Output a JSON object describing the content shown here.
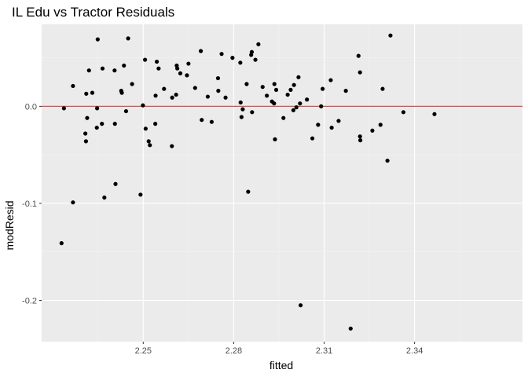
{
  "chart_data": {
    "type": "scatter",
    "title": "IL Edu vs Tractor Residuals",
    "xlabel": "fitted",
    "ylabel": "modResid",
    "xlim": [
      2.2163,
      2.3758
    ],
    "ylim": [
      -0.2425,
      0.0845
    ],
    "x_ticks": [
      2.25,
      2.28,
      2.31,
      2.34
    ],
    "x_tick_labels": [
      "2.25",
      "2.28",
      "2.31",
      "2.34"
    ],
    "y_ticks": [
      -0.2,
      -0.1,
      0.0
    ],
    "y_tick_labels": [
      "-0.2",
      "-0.1",
      "0.0"
    ],
    "grid": true,
    "panel_background": "#ebebeb",
    "point_color": "#000000",
    "reference_line": {
      "y": 0,
      "color": "#e8494f"
    },
    "points": [
      [
        2.2229,
        -0.141
      ],
      [
        2.2237,
        -0.002
      ],
      [
        2.2267,
        0.021
      ],
      [
        2.2267,
        -0.099
      ],
      [
        2.2308,
        -0.028
      ],
      [
        2.231,
        -0.036
      ],
      [
        2.2311,
        0.013
      ],
      [
        2.2314,
        -0.012
      ],
      [
        2.232,
        0.037
      ],
      [
        2.2331,
        0.014
      ],
      [
        2.2346,
        -0.022
      ],
      [
        2.2347,
        -0.002
      ],
      [
        2.2349,
        0.069
      ],
      [
        2.2363,
        -0.018
      ],
      [
        2.2365,
        0.039
      ],
      [
        2.2371,
        -0.094
      ],
      [
        2.2405,
        0.037
      ],
      [
        2.2406,
        -0.018
      ],
      [
        2.2408,
        -0.08
      ],
      [
        2.2427,
        0.016
      ],
      [
        2.2429,
        0.014
      ],
      [
        2.2436,
        0.042
      ],
      [
        2.2443,
        -0.005
      ],
      [
        2.245,
        0.07
      ],
      [
        2.2463,
        0.023
      ],
      [
        2.2491,
        -0.091
      ],
      [
        2.2499,
        0.001
      ],
      [
        2.2506,
        0.048
      ],
      [
        2.2508,
        -0.023
      ],
      [
        2.2518,
        -0.036
      ],
      [
        2.2522,
        -0.04
      ],
      [
        2.254,
        -0.018
      ],
      [
        2.2541,
        0.011
      ],
      [
        2.2545,
        0.046
      ],
      [
        2.2551,
        0.039
      ],
      [
        2.2569,
        0.018
      ],
      [
        2.2595,
        -0.041
      ],
      [
        2.2596,
        0.009
      ],
      [
        2.2609,
        0.012
      ],
      [
        2.2611,
        0.042
      ],
      [
        2.2613,
        0.039
      ],
      [
        2.2623,
        0.034
      ],
      [
        2.2645,
        0.032
      ],
      [
        2.265,
        0.044
      ],
      [
        2.2672,
        0.019
      ],
      [
        2.2691,
        0.057
      ],
      [
        2.2694,
        -0.014
      ],
      [
        2.2714,
        0.01
      ],
      [
        2.2727,
        -0.016
      ],
      [
        2.2748,
        0.029
      ],
      [
        2.2749,
        0.016
      ],
      [
        2.276,
        0.054
      ],
      [
        2.2773,
        0.009
      ],
      [
        2.2796,
        0.05
      ],
      [
        2.2822,
        0.045
      ],
      [
        2.2823,
        0.004
      ],
      [
        2.2826,
        -0.011
      ],
      [
        2.283,
        -0.003
      ],
      [
        2.2843,
        0.023
      ],
      [
        2.2848,
        -0.088
      ],
      [
        2.2858,
        0.053
      ],
      [
        2.286,
        0.056
      ],
      [
        2.2861,
        -0.006
      ],
      [
        2.2872,
        0.048
      ],
      [
        2.2882,
        0.064
      ],
      [
        2.2896,
        0.02
      ],
      [
        2.291,
        0.011
      ],
      [
        2.2927,
        0.005
      ],
      [
        2.2934,
        0.003
      ],
      [
        2.2935,
        0.023
      ],
      [
        2.2937,
        -0.034
      ],
      [
        2.2941,
        0.017
      ],
      [
        2.2965,
        -0.012
      ],
      [
        2.2979,
        0.012
      ],
      [
        2.2989,
        0.017
      ],
      [
        2.2998,
        -0.004
      ],
      [
        2.3,
        0.022
      ],
      [
        2.3008,
        -0.001
      ],
      [
        2.3015,
        0.03
      ],
      [
        2.302,
        0.003
      ],
      [
        2.3022,
        -0.205
      ],
      [
        2.3043,
        0.007
      ],
      [
        2.3061,
        -0.033
      ],
      [
        2.308,
        -0.019
      ],
      [
        2.309,
        -0.0
      ],
      [
        2.3095,
        0.018
      ],
      [
        2.3122,
        0.027
      ],
      [
        2.3125,
        -0.022
      ],
      [
        2.3148,
        -0.015
      ],
      [
        2.3172,
        0.016
      ],
      [
        2.3188,
        -0.229
      ],
      [
        2.3214,
        0.052
      ],
      [
        2.3219,
        0.035
      ],
      [
        2.3219,
        -0.031
      ],
      [
        2.322,
        -0.035
      ],
      [
        2.326,
        -0.025
      ],
      [
        2.3287,
        -0.019
      ],
      [
        2.3294,
        0.018
      ],
      [
        2.331,
        -0.056
      ],
      [
        2.332,
        0.073
      ],
      [
        2.3363,
        -0.006
      ],
      [
        2.3466,
        -0.008
      ]
    ]
  }
}
